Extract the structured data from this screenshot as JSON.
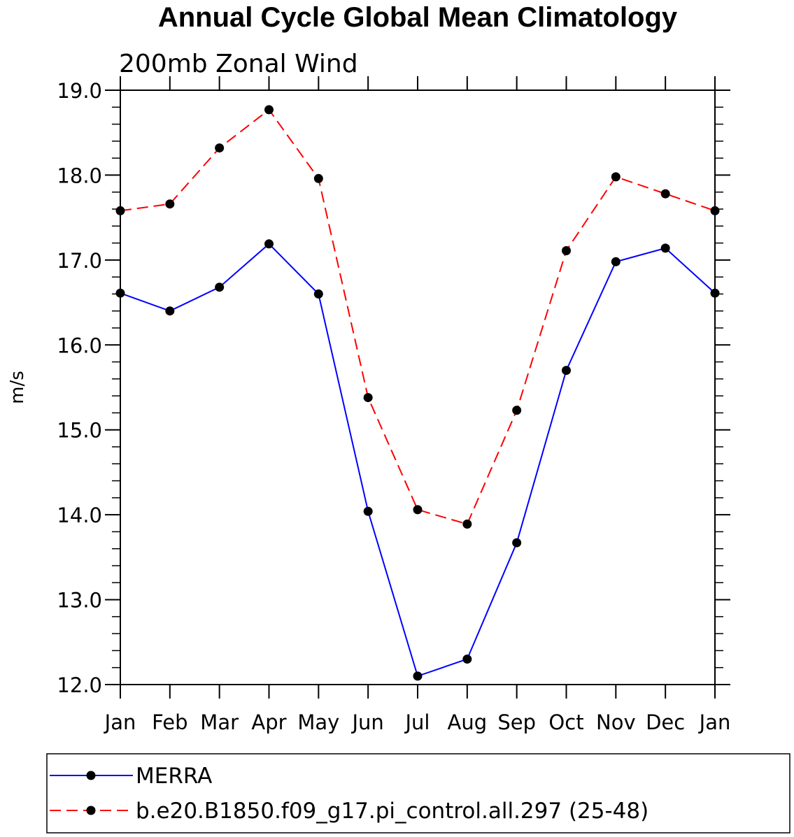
{
  "chart_data": {
    "type": "line",
    "title": "Annual Cycle Global Mean Climatology",
    "subtitle": "200mb Zonal Wind",
    "xlabel": "",
    "ylabel": "m/s",
    "categories": [
      "Jan",
      "Feb",
      "Mar",
      "Apr",
      "May",
      "Jun",
      "Jul",
      "Aug",
      "Sep",
      "Oct",
      "Nov",
      "Dec",
      "Jan"
    ],
    "ylim": [
      12.0,
      19.0
    ],
    "yticks": [
      "12.0",
      "13.0",
      "14.0",
      "15.0",
      "16.0",
      "17.0",
      "18.0",
      "19.0"
    ],
    "grid": false,
    "legend_position": "bottom",
    "series": [
      {
        "name": "MERRA",
        "color": "#0000ff",
        "line_style": "solid",
        "marker": "filled-circle",
        "values": [
          16.61,
          16.4,
          16.68,
          17.19,
          16.6,
          14.04,
          12.1,
          12.3,
          13.67,
          15.7,
          16.98,
          17.14,
          16.61
        ]
      },
      {
        "name": "b.e20.B1850.f09_g17.pi_control.all.297 (25-48)",
        "color": "#ff0000",
        "line_style": "dashed",
        "marker": "filled-circle",
        "values": [
          17.58,
          17.66,
          18.32,
          18.77,
          17.96,
          15.38,
          14.06,
          13.89,
          15.23,
          17.11,
          17.98,
          17.78,
          17.58
        ]
      }
    ]
  }
}
